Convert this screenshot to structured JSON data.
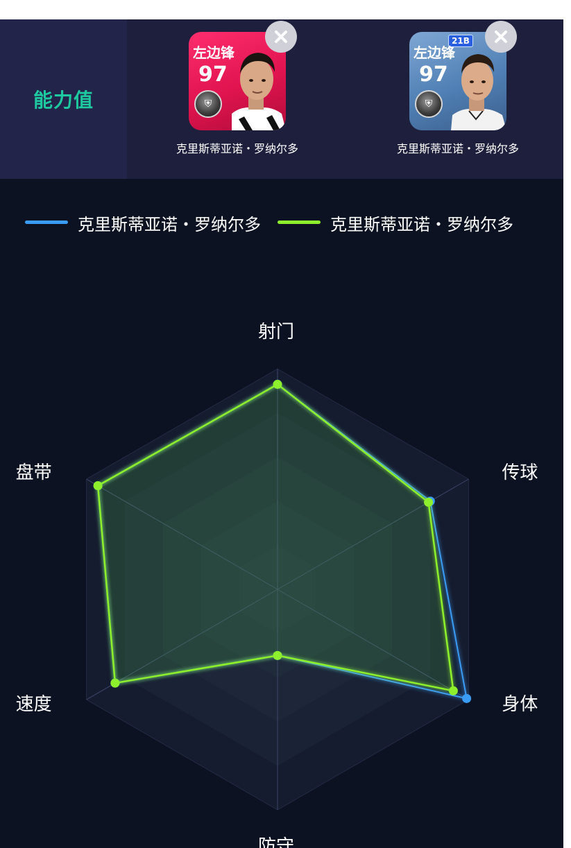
{
  "header": {
    "section_title": "能力值",
    "players": [
      {
        "position": "左边锋",
        "rating": "97",
        "name": "克里斯蒂亚诺・罗纳尔多",
        "tag": ""
      },
      {
        "position": "左边锋",
        "rating": "97",
        "name": "克里斯蒂亚诺・罗纳尔多",
        "tag": "21B"
      }
    ]
  },
  "colors": {
    "accent": "#1fc9a0",
    "series1": "#3a9cf5",
    "series2": "#8ef02c"
  },
  "chart_data": {
    "type": "radar",
    "axes": [
      "射门",
      "传球",
      "身体",
      "防守",
      "速度",
      "盘带"
    ],
    "range": [
      0,
      100
    ],
    "legend_position": "top",
    "series": [
      {
        "name": "克里斯蒂亚诺・罗纳尔多",
        "values": [
          93,
          80,
          99,
          30,
          85,
          94
        ]
      },
      {
        "name": "克里斯蒂亚诺・罗纳尔多",
        "values": [
          93,
          79,
          92,
          30,
          85,
          94
        ]
      }
    ]
  }
}
